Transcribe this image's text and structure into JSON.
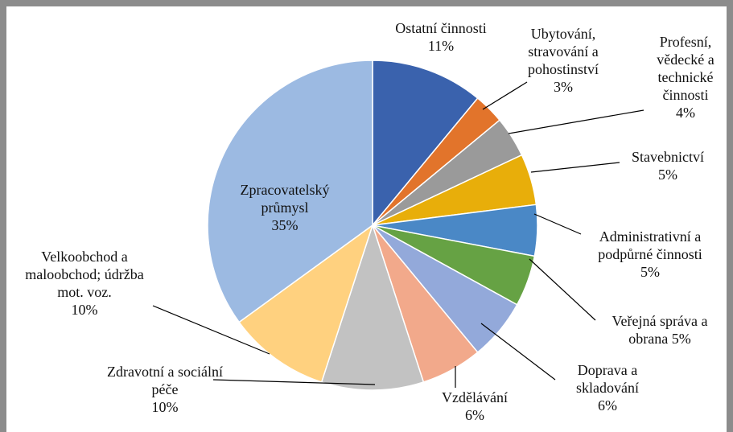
{
  "chart_data": {
    "type": "pie",
    "categories": [
      "Ostatní činnosti",
      "Ubytování, stravování a pohostinství",
      "Profesní, vědecké a technické činnosti",
      "Stavebnictví",
      "Administrativní a podpůrné činnosti",
      "Veřejná správa a obrana",
      "Doprava a skladování",
      "Vzdělávání",
      "Zdravotní a sociální péče",
      "Velkoobchod a maloobchod; údržba mot. voz.",
      "Zpracovatelský průmysl"
    ],
    "values": [
      11,
      3,
      4,
      5,
      5,
      5,
      6,
      6,
      10,
      10,
      35
    ],
    "value_labels": [
      "11%",
      "3%",
      "4%",
      "5%",
      "5%",
      "5%",
      "6%",
      "6%",
      "10%",
      "10%",
      "35%"
    ],
    "colors": [
      "#3a62ad",
      "#e2742b",
      "#9a9a9a",
      "#e8ae0a",
      "#4a88c6",
      "#66a244",
      "#93a9da",
      "#f2a98b",
      "#c2c2c2",
      "#ffd17f",
      "#9cbae2"
    ]
  }
}
